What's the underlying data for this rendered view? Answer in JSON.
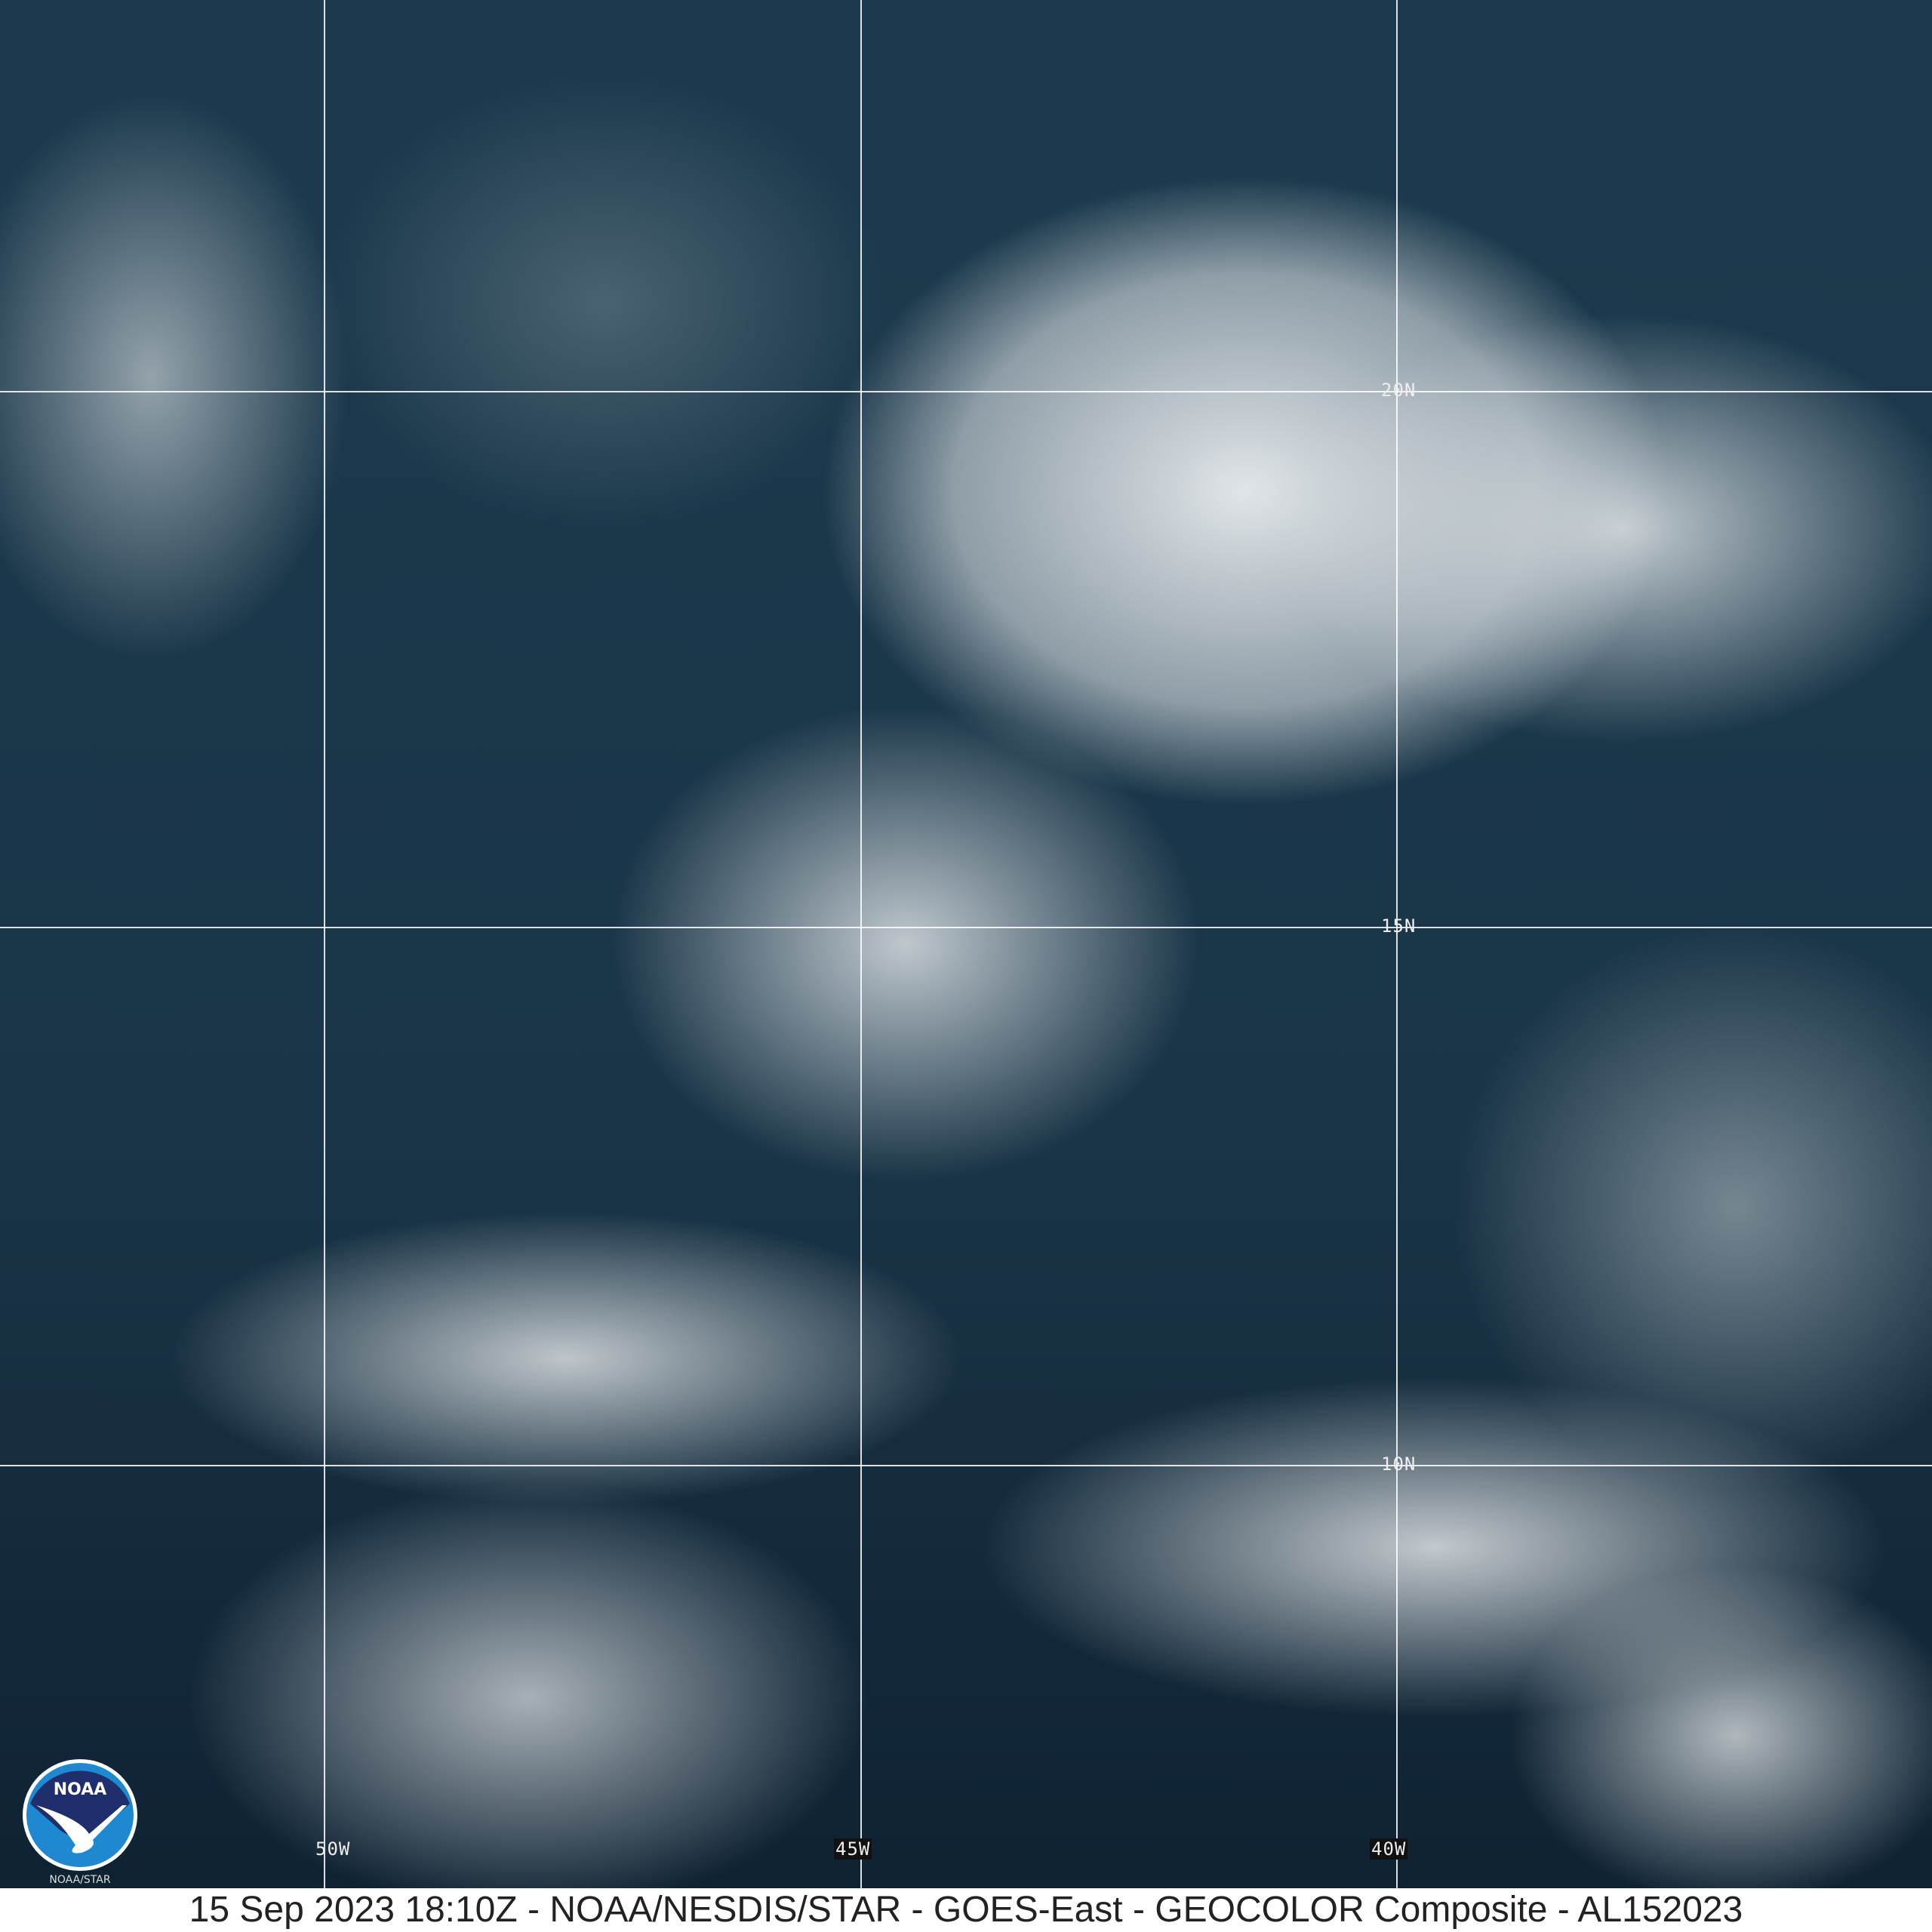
{
  "image": {
    "colors": {
      "ocean": "#1c3a4e",
      "cloud": "#e6eaec",
      "grid": "#ffffff"
    }
  },
  "grid": {
    "longitudes": [
      "50W",
      "45W",
      "40W"
    ],
    "latitudes": [
      "20N",
      "15N",
      "10N"
    ]
  },
  "logo": {
    "text": "NOAA",
    "subtext": "NOAA/STAR"
  },
  "caption": "15 Sep 2023 18:10Z - NOAA/NESDIS/STAR - GOES-East - GEOCOLOR Composite - AL152023"
}
